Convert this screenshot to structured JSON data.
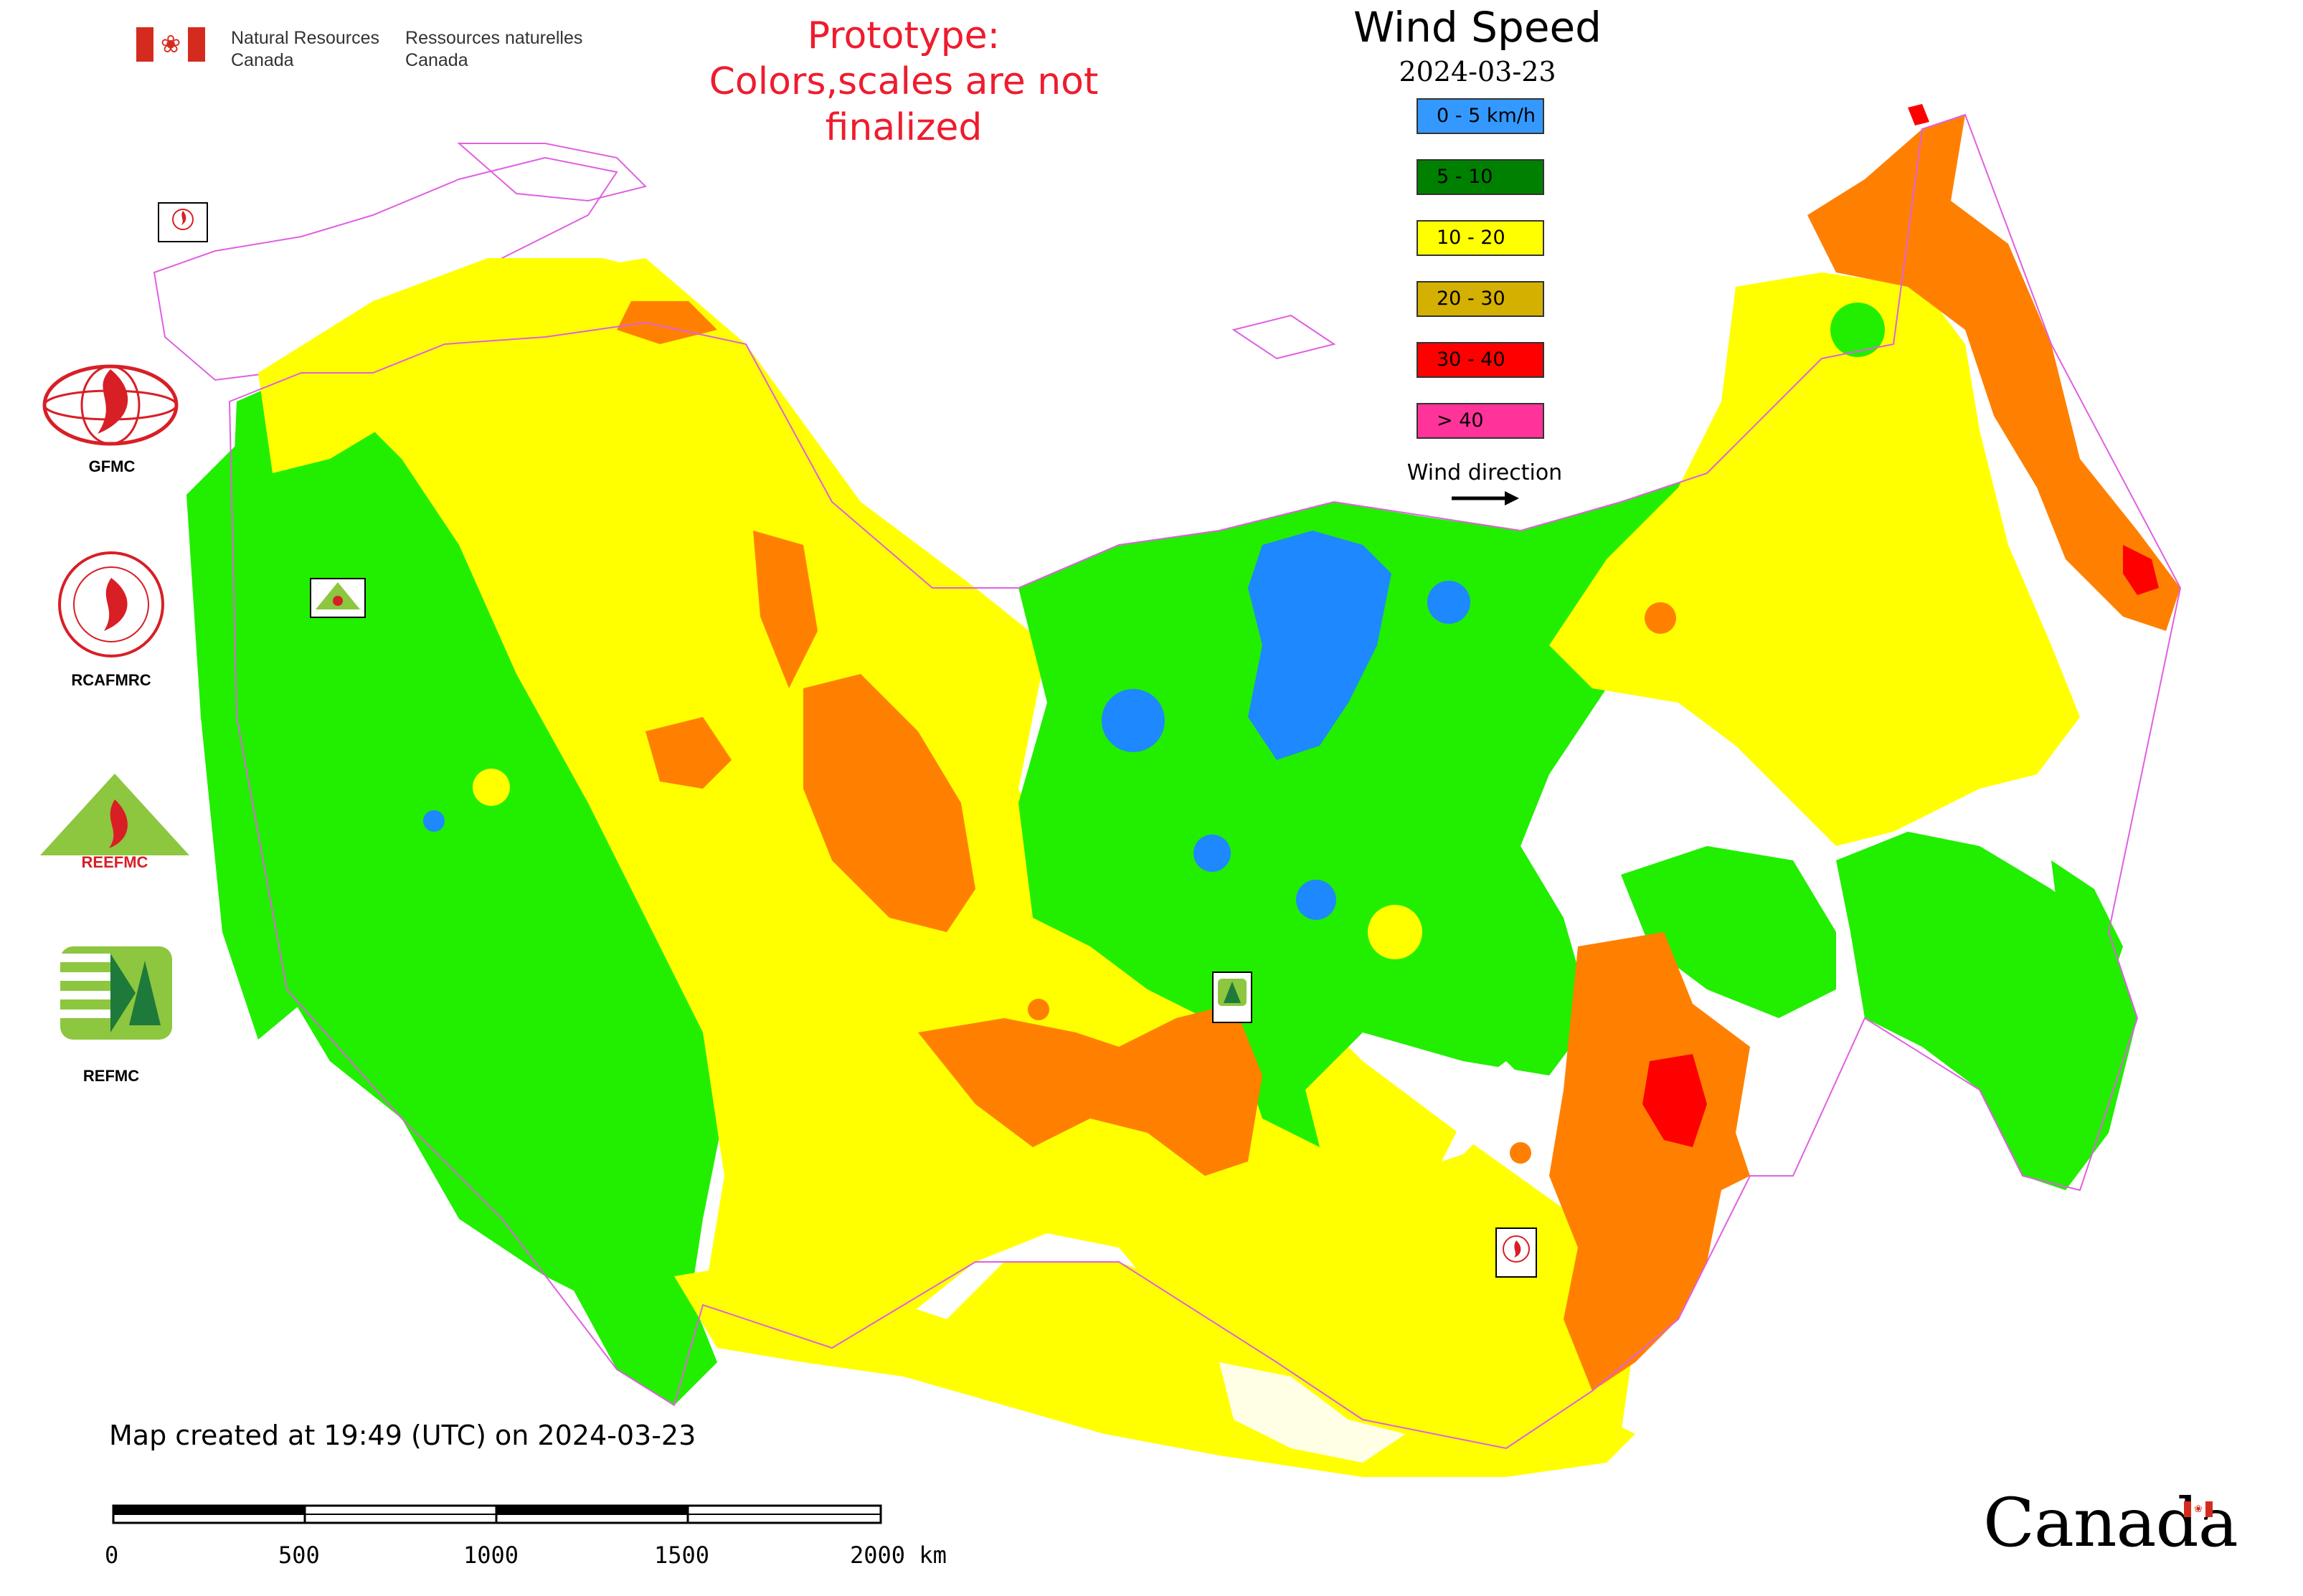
{
  "header": {
    "department_en_line1": "Natural Resources",
    "department_en_line2": "Canada",
    "department_fr_line1": "Ressources naturelles",
    "department_fr_line2": "Canada",
    "prototype_line1": "Prototype:",
    "prototype_line2": "Colors,scales are not finalized"
  },
  "map": {
    "title": "Wind Speed",
    "date": "2024-03-23",
    "wind_direction_label": "Wind direction",
    "created_text": "Map created at 19:49 (UTC) on 2024-03-23",
    "legend": [
      {
        "label": "0 - 5 km/h",
        "color": "#3399ff"
      },
      {
        "label": "5 - 10",
        "color": "#008000"
      },
      {
        "label": "10 - 20",
        "color": "#ffff00"
      },
      {
        "label": "20 - 30",
        "color": "#d4b000"
      },
      {
        "label": "30 - 40",
        "color": "#ff0000"
      },
      {
        "label": "> 40",
        "color": "#ff3399"
      }
    ],
    "colors": {
      "green": "#22ee00",
      "yellow": "#ffff00",
      "orange": "#ff8000",
      "red": "#ff0000",
      "blue": "#1e88ff",
      "boundary": "#e060e0"
    },
    "scale_bar": {
      "ticks": [
        "0",
        "500",
        "1000",
        "1500",
        "2000 km"
      ]
    }
  },
  "logos": [
    {
      "name": "GFMC",
      "icon": "flame-globe-icon"
    },
    {
      "name": "RCAFMRC",
      "icon": "seal-flame-icon"
    },
    {
      "name": "REEFMC",
      "icon": "triangle-flame-icon"
    },
    {
      "name": "REFMC",
      "icon": "sigma-tree-icon"
    }
  ],
  "footer": {
    "wordmark": "Canada"
  }
}
